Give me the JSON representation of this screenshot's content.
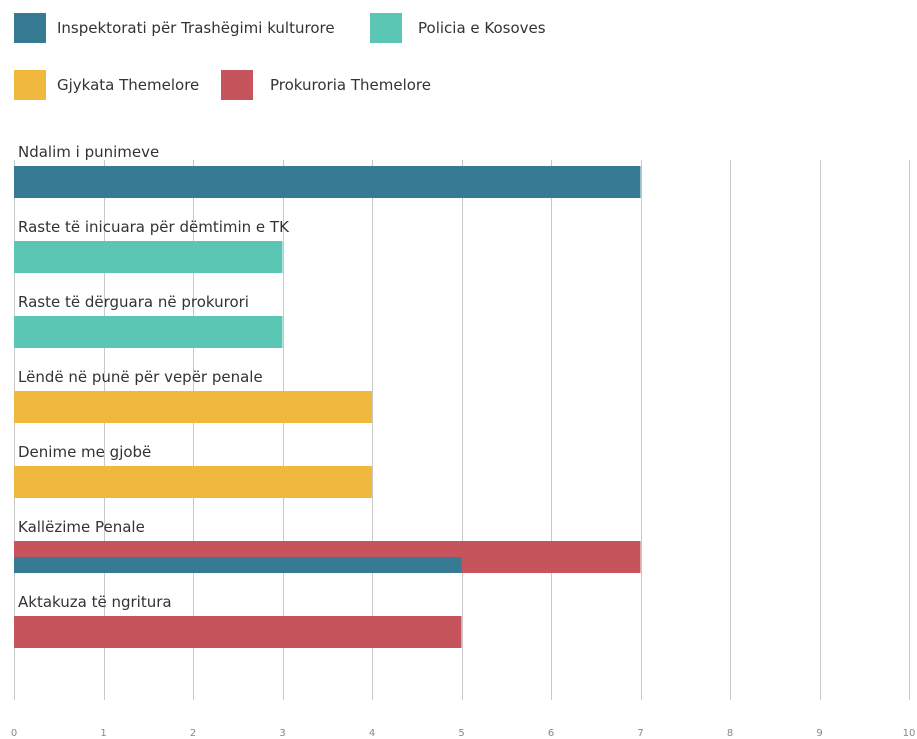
{
  "chart_data": {
    "type": "bar",
    "orientation": "horizontal",
    "title": "",
    "xlabel": "",
    "ylabel": "",
    "xlim": [
      0,
      10
    ],
    "x_ticks": [
      "0",
      "1",
      "2",
      "3",
      "4",
      "5",
      "6",
      "7",
      "8",
      "9",
      "10"
    ],
    "grid": "vertical",
    "legend_position": "top",
    "series": [
      {
        "name": "Inspektorati për Trashëgimi kulturore",
        "color": "#367a93"
      },
      {
        "name": "Policia e Kosoves",
        "color": "#5ac6b3"
      },
      {
        "name": "Gjykata Themelore",
        "color": "#f0b93e"
      },
      {
        "name": "Prokuroria Themelore",
        "color": "#c6545c"
      }
    ],
    "categories": [
      {
        "label": "Ndalim i punimeve",
        "bars": [
          {
            "series": 0,
            "value": 7
          }
        ]
      },
      {
        "label": "Raste të inicuara për dëmtimin e TK",
        "bars": [
          {
            "series": 1,
            "value": 3
          }
        ]
      },
      {
        "label": "Raste të dërguara në prokurori",
        "bars": [
          {
            "series": 1,
            "value": 3
          }
        ]
      },
      {
        "label": "Lëndë në punë për vepër penale",
        "bars": [
          {
            "series": 2,
            "value": 4
          }
        ]
      },
      {
        "label": "Denime me gjobë",
        "bars": [
          {
            "series": 2,
            "value": 4
          }
        ]
      },
      {
        "label": "Kallëzime Penale",
        "bars": [
          {
            "series": 3,
            "value": 7
          },
          {
            "series": 0,
            "value": 5
          }
        ]
      },
      {
        "label": "Aktakuza të ngritura",
        "bars": [
          {
            "series": 3,
            "value": 5
          }
        ]
      }
    ]
  }
}
